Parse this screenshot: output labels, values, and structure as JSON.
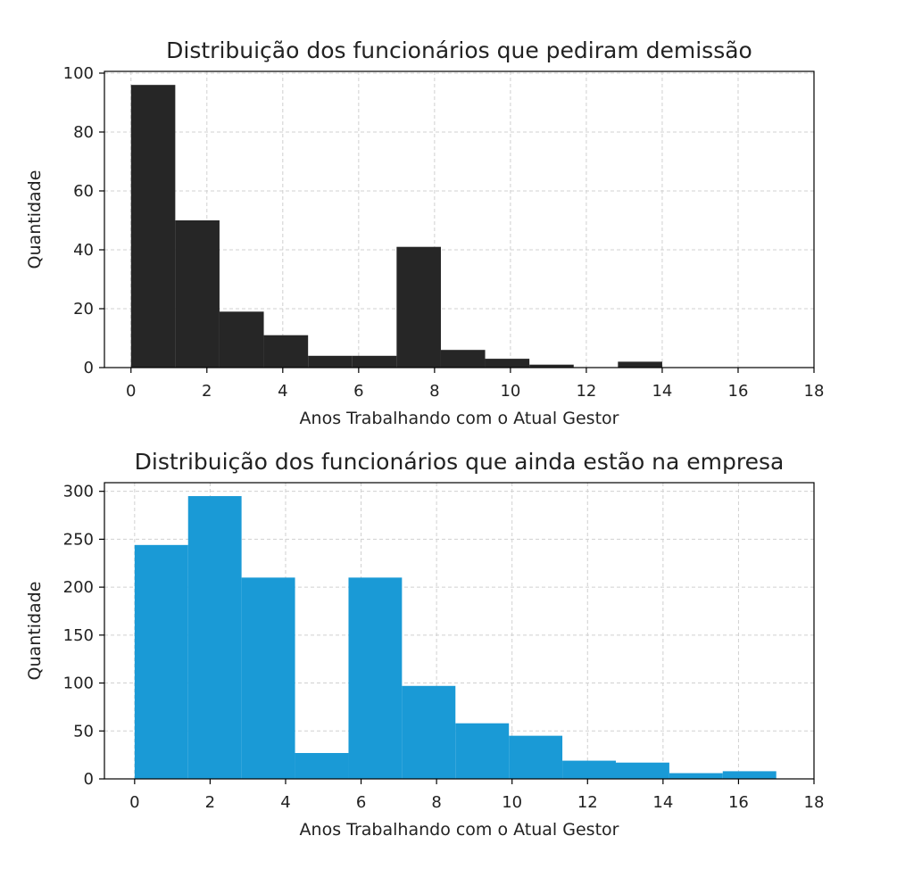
{
  "chart_data": [
    {
      "type": "bar",
      "title": "Distribuição dos funcionários que pediram demissão",
      "xlabel": "Anos Trabalhando com o Atual Gestor",
      "ylabel": "Quantidade",
      "xlim": [
        -0.7,
        18
      ],
      "ylim": [
        0,
        100.6
      ],
      "xticks": [
        "0",
        "2",
        "4",
        "6",
        "8",
        "10",
        "12",
        "14",
        "16",
        "18"
      ],
      "yticks": [
        "0",
        "20",
        "40",
        "60",
        "80",
        "100"
      ],
      "grid": true,
      "color": "#262626",
      "bins": [
        {
          "x0": 0.0,
          "x1": 1.167,
          "value": 96
        },
        {
          "x0": 1.167,
          "x1": 2.333,
          "value": 50
        },
        {
          "x0": 2.333,
          "x1": 3.5,
          "value": 19
        },
        {
          "x0": 3.5,
          "x1": 4.667,
          "value": 11
        },
        {
          "x0": 4.667,
          "x1": 5.833,
          "value": 4
        },
        {
          "x0": 5.833,
          "x1": 7.0,
          "value": 4
        },
        {
          "x0": 7.0,
          "x1": 8.167,
          "value": 41
        },
        {
          "x0": 8.167,
          "x1": 9.333,
          "value": 6
        },
        {
          "x0": 9.333,
          "x1": 10.5,
          "value": 3
        },
        {
          "x0": 10.5,
          "x1": 11.667,
          "value": 1
        },
        {
          "x0": 11.667,
          "x1": 12.833,
          "value": 0
        },
        {
          "x0": 12.833,
          "x1": 14.0,
          "value": 2
        }
      ]
    },
    {
      "type": "bar",
      "title": "Distribuição dos funcionários que ainda estão na empresa",
      "xlabel": "Anos Trabalhando com o Atual Gestor",
      "ylabel": "Quantidade",
      "xlim": [
        -0.8,
        18
      ],
      "ylim": [
        0,
        309
      ],
      "xticks": [
        "0",
        "2",
        "4",
        "6",
        "8",
        "10",
        "12",
        "14",
        "16",
        "18"
      ],
      "yticks": [
        "0",
        "50",
        "100",
        "150",
        "200",
        "250",
        "300"
      ],
      "grid": true,
      "color": "#1a9ad6",
      "bins": [
        {
          "x0": 0.0,
          "x1": 1.417,
          "value": 244
        },
        {
          "x0": 1.417,
          "x1": 2.833,
          "value": 295
        },
        {
          "x0": 2.833,
          "x1": 4.25,
          "value": 210
        },
        {
          "x0": 4.25,
          "x1": 5.667,
          "value": 27
        },
        {
          "x0": 5.667,
          "x1": 7.083,
          "value": 210
        },
        {
          "x0": 7.083,
          "x1": 8.5,
          "value": 97
        },
        {
          "x0": 8.5,
          "x1": 9.917,
          "value": 58
        },
        {
          "x0": 9.917,
          "x1": 11.333,
          "value": 45
        },
        {
          "x0": 11.333,
          "x1": 12.75,
          "value": 19
        },
        {
          "x0": 12.75,
          "x1": 14.167,
          "value": 17
        },
        {
          "x0": 14.167,
          "x1": 15.583,
          "value": 6
        },
        {
          "x0": 15.583,
          "x1": 17.0,
          "value": 8
        }
      ]
    }
  ]
}
